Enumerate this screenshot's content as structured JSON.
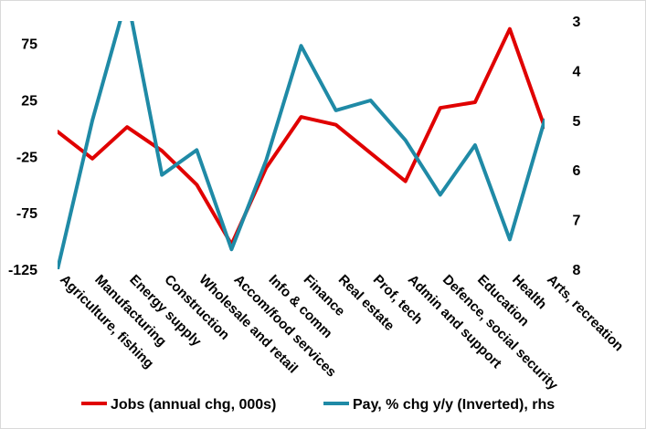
{
  "chart_data": {
    "type": "line",
    "categories": [
      "Agriculture, fishing",
      "Manufacturing",
      "Energy supply",
      "Construction",
      "Wholesale and retail",
      "Accom/food services",
      "Info & comm",
      "Finance",
      "Real estate",
      "Prof, tech",
      "Admin and support",
      "Defence, social security",
      "Education",
      "Health",
      "Arts,  recreation"
    ],
    "y_left": {
      "ticks": [
        "75",
        "25",
        "-25",
        "-75",
        "-125"
      ],
      "ylim": [
        -125,
        95
      ]
    },
    "y_right": {
      "inverted": true,
      "ticks": [
        "3",
        "4",
        "5",
        "6",
        "7",
        "8"
      ],
      "ylim": [
        3,
        8
      ]
    },
    "series": [
      {
        "name": "Jobs (annual chg, 000s)",
        "axis": "left",
        "color": "#e00000",
        "values": [
          -3,
          -27,
          1,
          -20,
          -50,
          -103,
          -35,
          10,
          3,
          -22,
          -47,
          18,
          23,
          88,
          1
        ]
      },
      {
        "name": "Pay, % chg y/y (Inverted), rhs",
        "axis": "right",
        "color": "#1f8aa6",
        "values": [
          8.0,
          5.0,
          2.5,
          6.1,
          5.6,
          7.6,
          5.8,
          3.5,
          4.8,
          4.6,
          5.4,
          6.5,
          5.5,
          7.4,
          5.0
        ]
      }
    ]
  }
}
